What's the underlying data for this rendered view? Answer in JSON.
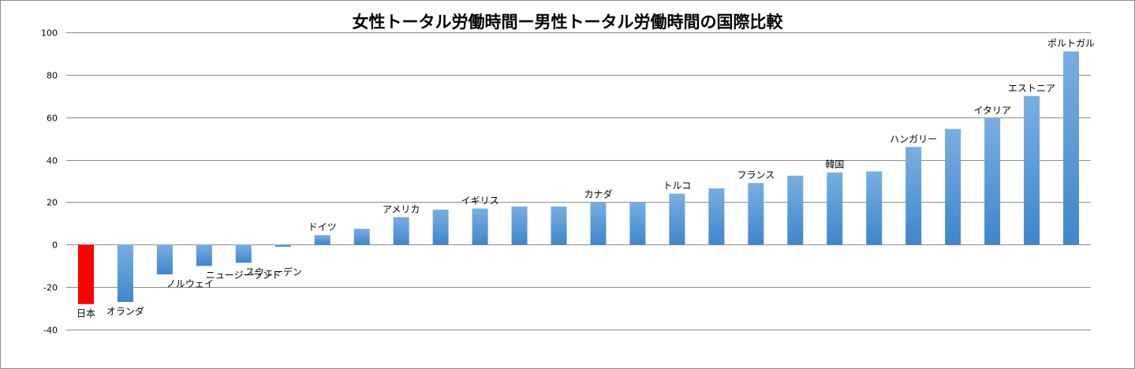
{
  "chart_data": {
    "type": "bar",
    "title": "女性トータル労働時間ー男性トータル労働時間の国際比較",
    "xlabel": "",
    "ylabel": "",
    "ylim": [
      -40,
      100
    ],
    "yticks": [
      100,
      80,
      60,
      40,
      20,
      0,
      -20,
      -40
    ],
    "ytick_labels": [
      "100",
      "80",
      "60",
      "40",
      "20",
      "0",
      "-20",
      "-40"
    ],
    "grid": true,
    "legend": "none",
    "bar_color": "#5b9bd5",
    "highlight_color": "#ff0000",
    "highlight_index": 0,
    "values": [
      -28,
      -27,
      -14,
      -10,
      -8.5,
      -1,
      4.5,
      7.5,
      13,
      16.5,
      17,
      18,
      18,
      20,
      20,
      24,
      26.5,
      29,
      32.5,
      34,
      34.5,
      46,
      54.5,
      59.5,
      70,
      91
    ],
    "labels": [
      "日本",
      "オランダ",
      "ノルウェイ",
      "ニュージーランド",
      "スウェーデン",
      "",
      "ドイツ",
      "",
      "アメリカ",
      "",
      "イギリス",
      "",
      "",
      "カナダ",
      "",
      "トルコ",
      "",
      "フランス",
      "",
      "韓国",
      "",
      "ハンガリー",
      "",
      "イタリア",
      "エストニア",
      "ポルトガル"
    ]
  }
}
